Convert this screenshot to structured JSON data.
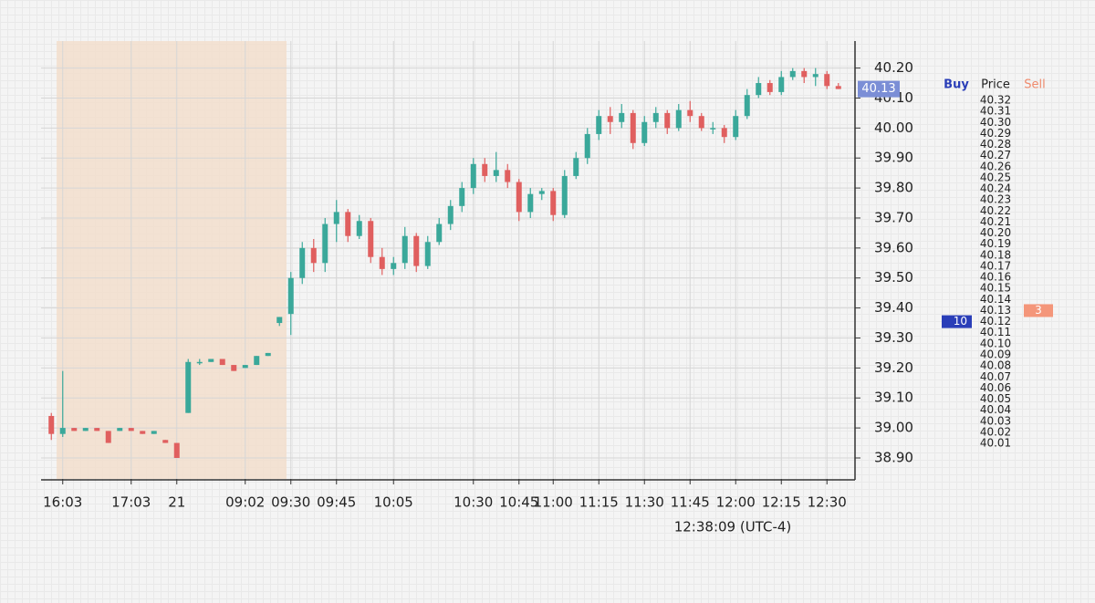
{
  "chart_data": {
    "type": "candlestick",
    "categories": [
      null,
      "16:03",
      null,
      null,
      null,
      null,
      null,
      "17:03",
      null,
      null,
      null,
      "21",
      null,
      null,
      null,
      null,
      null,
      "09:02",
      null,
      null,
      null,
      "09:30",
      null,
      null,
      null,
      "09:45",
      null,
      null,
      null,
      null,
      "10:05",
      null,
      null,
      null,
      null,
      null,
      null,
      "10:30",
      null,
      null,
      null,
      "10:45",
      null,
      null,
      "11:00",
      null,
      null,
      null,
      "11:15",
      null,
      null,
      null,
      "11:30",
      null,
      null,
      null,
      "11:45",
      null,
      null,
      null,
      "12:00",
      null,
      null,
      null,
      "12:15",
      null,
      null,
      null,
      "12:30",
      null
    ],
    "open": [
      39.04,
      38.98,
      39.0,
      38.99,
      39.0,
      38.99,
      38.99,
      39.0,
      38.99,
      38.98,
      38.96,
      38.95,
      39.05,
      39.22,
      39.22,
      39.23,
      39.21,
      39.2,
      39.21,
      39.24,
      39.35,
      39.38,
      39.5,
      39.6,
      39.55,
      39.68,
      39.72,
      39.64,
      39.69,
      39.57,
      39.53,
      39.55,
      39.64,
      39.54,
      39.62,
      39.68,
      39.74,
      39.8,
      39.88,
      39.84,
      39.86,
      39.82,
      39.72,
      39.78,
      39.79,
      39.71,
      39.84,
      39.9,
      39.98,
      40.04,
      40.02,
      40.05,
      39.95,
      40.02,
      40.05,
      40.0,
      40.06,
      40.04,
      40.0,
      40.0,
      39.97,
      40.04,
      40.11,
      40.15,
      40.12,
      40.17,
      40.19,
      40.17,
      40.18,
      40.14
    ],
    "high": [
      39.05,
      39.19,
      39.0,
      39.0,
      39.0,
      38.99,
      39.0,
      39.0,
      38.99,
      38.99,
      38.96,
      38.95,
      39.23,
      39.23,
      39.23,
      39.23,
      39.21,
      39.21,
      39.24,
      39.25,
      39.37,
      39.52,
      39.62,
      39.63,
      39.7,
      39.76,
      39.73,
      39.71,
      39.7,
      39.6,
      39.57,
      39.67,
      39.65,
      39.64,
      39.7,
      39.76,
      39.82,
      39.9,
      39.9,
      39.92,
      39.88,
      39.83,
      39.8,
      39.8,
      39.8,
      39.86,
      39.92,
      40.0,
      40.06,
      40.07,
      40.08,
      40.06,
      40.04,
      40.07,
      40.06,
      40.08,
      40.09,
      40.05,
      40.02,
      40.01,
      40.06,
      40.13,
      40.17,
      40.16,
      40.19,
      40.2,
      40.2,
      40.2,
      40.19,
      40.15
    ],
    "low": [
      38.96,
      38.97,
      38.99,
      38.99,
      38.99,
      38.95,
      38.99,
      38.99,
      38.98,
      38.98,
      38.95,
      38.9,
      39.05,
      39.21,
      39.22,
      39.21,
      39.19,
      39.2,
      39.21,
      39.24,
      39.34,
      39.31,
      39.48,
      39.52,
      39.52,
      39.62,
      39.62,
      39.63,
      39.55,
      39.51,
      39.51,
      39.53,
      39.52,
      39.53,
      39.61,
      39.66,
      39.72,
      39.78,
      39.82,
      39.82,
      39.8,
      39.69,
      39.7,
      39.76,
      39.69,
      39.7,
      39.83,
      39.88,
      39.96,
      39.98,
      40.0,
      39.93,
      39.94,
      40.0,
      39.98,
      39.99,
      40.02,
      39.99,
      39.98,
      39.95,
      39.96,
      40.03,
      40.1,
      40.11,
      40.11,
      40.16,
      40.15,
      40.14,
      40.13,
      40.13
    ],
    "close": [
      38.98,
      39.0,
      38.99,
      39.0,
      38.99,
      38.95,
      39.0,
      38.99,
      38.98,
      38.99,
      38.95,
      38.9,
      39.22,
      39.22,
      39.23,
      39.21,
      39.19,
      39.21,
      39.24,
      39.25,
      39.37,
      39.5,
      39.6,
      39.55,
      39.68,
      39.72,
      39.64,
      39.69,
      39.57,
      39.53,
      39.55,
      39.64,
      39.54,
      39.62,
      39.68,
      39.74,
      39.8,
      39.88,
      39.84,
      39.86,
      39.82,
      39.72,
      39.78,
      39.79,
      39.71,
      39.84,
      39.9,
      39.98,
      40.04,
      40.02,
      40.05,
      39.95,
      40.02,
      40.05,
      40.0,
      40.06,
      40.04,
      40.0,
      40.0,
      39.97,
      40.04,
      40.11,
      40.15,
      40.12,
      40.17,
      40.19,
      40.17,
      40.18,
      40.14,
      40.13
    ],
    "up_color": "#3aa89a",
    "down_color": "#e05f5f",
    "ylim": [
      38.83,
      40.29
    ],
    "yticks": [
      {
        "value": 38.9,
        "label": "38.90"
      },
      {
        "value": 39.0,
        "label": "39.00"
      },
      {
        "value": 39.1,
        "label": "39.10"
      },
      {
        "value": 39.2,
        "label": "39.20"
      },
      {
        "value": 39.3,
        "label": "39.30"
      },
      {
        "value": 39.4,
        "label": "39.40"
      },
      {
        "value": 39.5,
        "label": "39.50"
      },
      {
        "value": 39.6,
        "label": "39.60"
      },
      {
        "value": 39.7,
        "label": "39.70"
      },
      {
        "value": 39.8,
        "label": "39.80"
      },
      {
        "value": 39.9,
        "label": "39.90"
      },
      {
        "value": 40.0,
        "label": "40.00"
      },
      {
        "value": 40.1,
        "label": "40.10"
      },
      {
        "value": 40.2,
        "label": "40.20"
      }
    ],
    "grid": true,
    "last_price": {
      "value": 40.13,
      "label": "40.13"
    },
    "timestamp": "12:38:09  (UTC-4)"
  },
  "order_book": {
    "headers": {
      "buy": "Buy",
      "price": "Price",
      "sell": "Sell"
    },
    "prices": [
      "40.32",
      "40.31",
      "40.30",
      "40.29",
      "40.28",
      "40.27",
      "40.26",
      "40.25",
      "40.24",
      "40.23",
      "40.22",
      "40.21",
      "40.20",
      "40.19",
      "40.18",
      "40.17",
      "40.16",
      "40.15",
      "40.14",
      "40.13",
      "40.12",
      "40.11",
      "40.10",
      "40.09",
      "40.08",
      "40.07",
      "40.06",
      "40.05",
      "40.04",
      "40.03",
      "40.02",
      "40.01"
    ],
    "bid": {
      "row": 20,
      "size": "10"
    },
    "ask": {
      "row": 19,
      "size": "3"
    }
  }
}
